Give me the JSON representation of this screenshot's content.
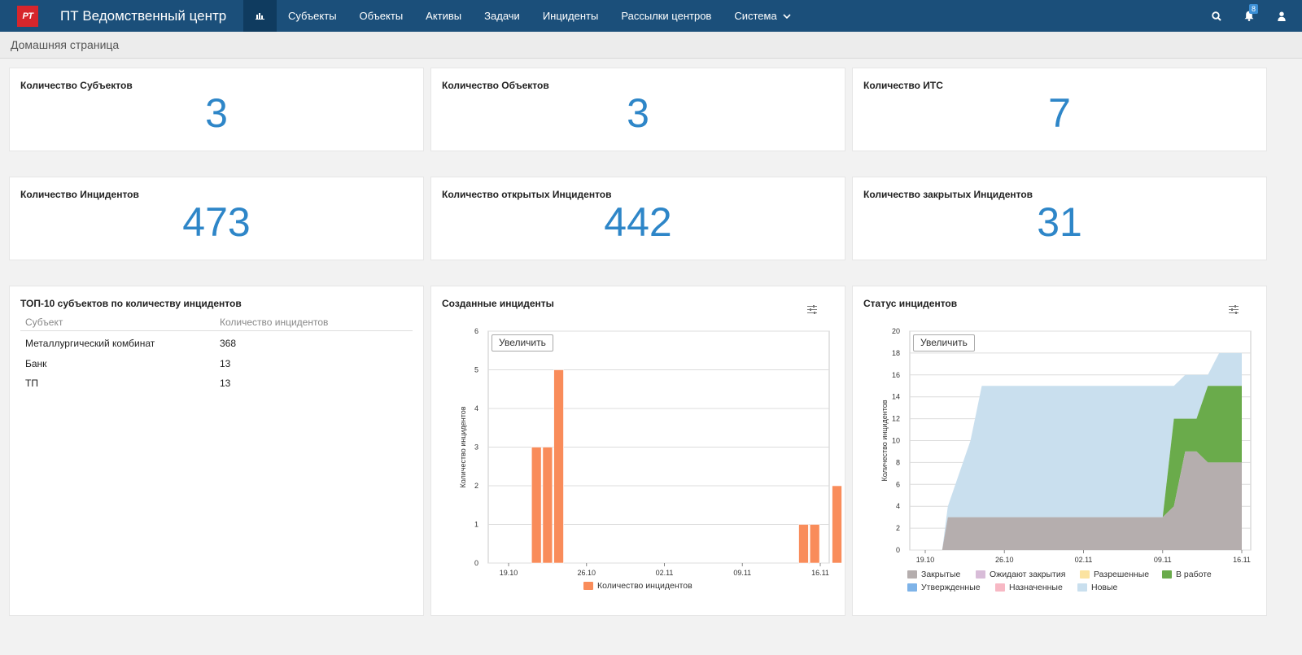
{
  "header": {
    "logo_text": "PT",
    "app_title": "ПТ Ведомственный центр",
    "nav": [
      "Субъекты",
      "Объекты",
      "Активы",
      "Задачи",
      "Инциденты",
      "Рассылки центров",
      "Система"
    ],
    "notifications_count": "8",
    "icons": [
      "dashboard-icon",
      "search-icon",
      "bell-icon",
      "user-icon"
    ]
  },
  "breadcrumb": "Домашняя страница",
  "stats": [
    {
      "title": "Количество Субъектов",
      "value": "3"
    },
    {
      "title": "Количество Объектов",
      "value": "3"
    },
    {
      "title": "Количество ИТС",
      "value": "7"
    },
    {
      "title": "Количество Инцидентов",
      "value": "473"
    },
    {
      "title": "Количество открытых Инцидентов",
      "value": "442"
    },
    {
      "title": "Количество закрытых Инцидентов",
      "value": "31"
    }
  ],
  "top10": {
    "title": "ТОП-10 субъектов по количеству инцидентов",
    "columns": [
      "Субъект",
      "Количество инцидентов"
    ],
    "rows": [
      [
        "Металлургический комбинат",
        "368"
      ],
      [
        "Банк",
        "13"
      ],
      [
        "ТП",
        "13"
      ]
    ]
  },
  "zoom_label": "Увеличить",
  "colors": {
    "accent": "#2e86c8",
    "topbar": "#1b4f7a",
    "bar": "#f98c5a"
  },
  "chart_data": [
    {
      "type": "bar",
      "title": "Созданные инциденты",
      "ylabel": "Количество инцидентов",
      "ylim": [
        0,
        6
      ],
      "yticks": [
        0,
        1,
        2,
        3,
        4,
        5,
        6
      ],
      "xticks": [
        "19.10",
        "26.10",
        "02.11",
        "09.11",
        "16.11"
      ],
      "x_day_range": [
        17,
        48
      ],
      "xtick_days": [
        19,
        26,
        33,
        40,
        47
      ],
      "series": [
        {
          "name": "Количество инцидентов",
          "color": "#f98c5a",
          "points": [
            [
              21.5,
              3
            ],
            [
              22.5,
              3
            ],
            [
              23.5,
              5
            ],
            [
              45.5,
              1
            ],
            [
              46.5,
              1
            ],
            [
              48.5,
              2
            ]
          ]
        }
      ]
    },
    {
      "type": "area",
      "title": "Статус инцидентов",
      "ylabel": "Количество инцидентов",
      "ylim": [
        0,
        20
      ],
      "yticks": [
        0,
        2,
        4,
        6,
        8,
        10,
        12,
        14,
        16,
        18,
        20
      ],
      "xticks": [
        "19.10",
        "26.10",
        "02.11",
        "09.11",
        "16.11"
      ],
      "x_day_range": [
        19,
        47
      ],
      "xtick_days": [
        19,
        26,
        33,
        40,
        47
      ],
      "x": [
        19,
        20,
        20.5,
        21,
        22,
        23,
        24,
        25,
        26,
        33,
        40,
        41,
        42,
        43,
        44,
        45,
        46,
        47
      ],
      "series": [
        {
          "name": "Закрытые",
          "color": "#b5aeae",
          "values": [
            0,
            0,
            0,
            3,
            3,
            3,
            3,
            3,
            3,
            3,
            3,
            4,
            9,
            9,
            8,
            8,
            8,
            8
          ]
        },
        {
          "name": "В работе",
          "color": "#6aab4b",
          "values": [
            0,
            0,
            0,
            0,
            0,
            0,
            0,
            0,
            0,
            0,
            0,
            8,
            3,
            3,
            7,
            7,
            7,
            7
          ]
        },
        {
          "name": "Новые",
          "color": "#c9dfee",
          "values": [
            0,
            0,
            0,
            1,
            4,
            7,
            12,
            12,
            12,
            12,
            12,
            3,
            4,
            4,
            1,
            3,
            3,
            3
          ]
        }
      ],
      "legend": [
        {
          "name": "Закрытые",
          "color": "#b5aeae"
        },
        {
          "name": "Ожидают закрытия",
          "color": "#d8bcd8"
        },
        {
          "name": "Разрешенные",
          "color": "#fbe3a0"
        },
        {
          "name": "В работе",
          "color": "#6aab4b"
        },
        {
          "name": "Утвержденные",
          "color": "#7eb3e8"
        },
        {
          "name": "Назначенные",
          "color": "#f7b8c4"
        },
        {
          "name": "Новые",
          "color": "#c9dfee"
        }
      ]
    }
  ]
}
